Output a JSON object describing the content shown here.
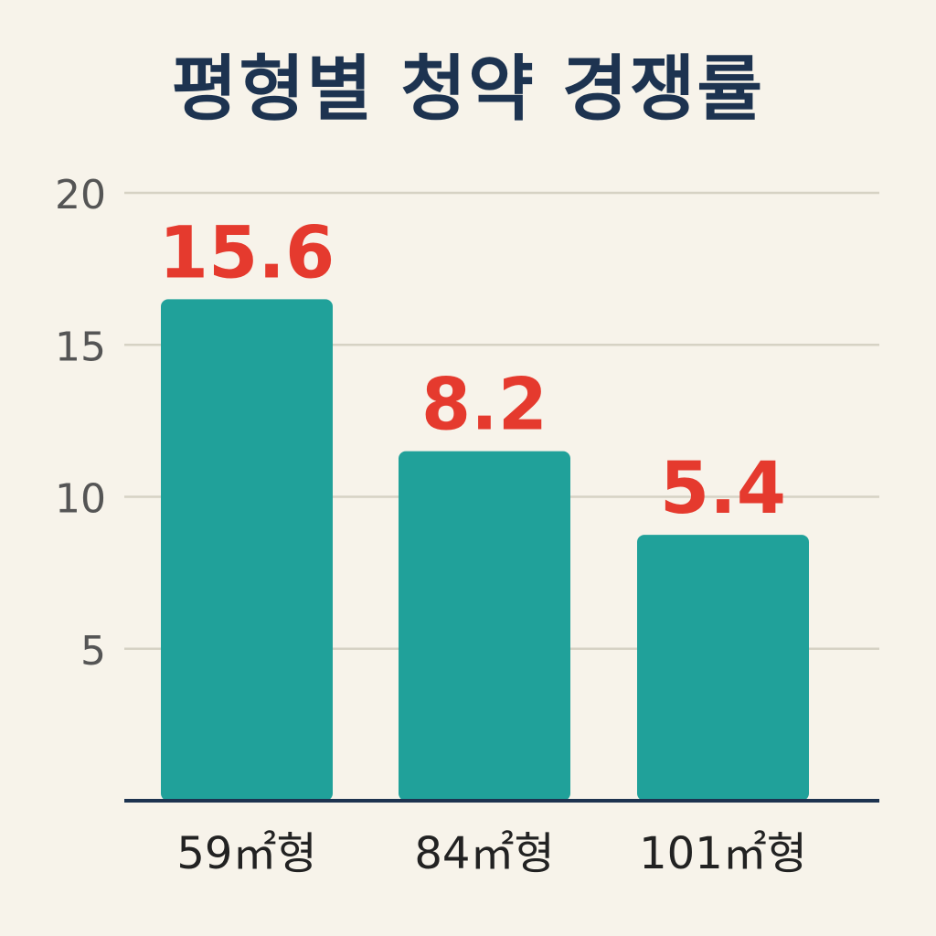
{
  "title": "평형별 청약 경쟁률",
  "colors": {
    "background": "#f7f3ea",
    "title": "#1d3350",
    "bar": "#20a19a",
    "value_label": "#e53a2e",
    "tick_label": "#555555",
    "category_label": "#222222",
    "grid": "#d6d2c4",
    "axis": "#1d3350"
  },
  "chart_data": {
    "type": "bar",
    "title": "평형별 청약 경쟁률",
    "xlabel": "",
    "ylabel": "",
    "categories": [
      "59㎡형",
      "84㎡형",
      "101㎡형"
    ],
    "values": [
      15.6,
      8.2,
      5.4
    ],
    "value_labels": [
      "15.6",
      "8.2",
      "5.4"
    ],
    "bar_axis_levels": [
      16.5,
      11.5,
      8.75
    ],
    "yticks": [
      5,
      10,
      15,
      20
    ],
    "ytick_labels": [
      "5",
      "10",
      "15",
      "20"
    ],
    "ylim": [
      0,
      20
    ],
    "grid": true,
    "legend": "none"
  }
}
